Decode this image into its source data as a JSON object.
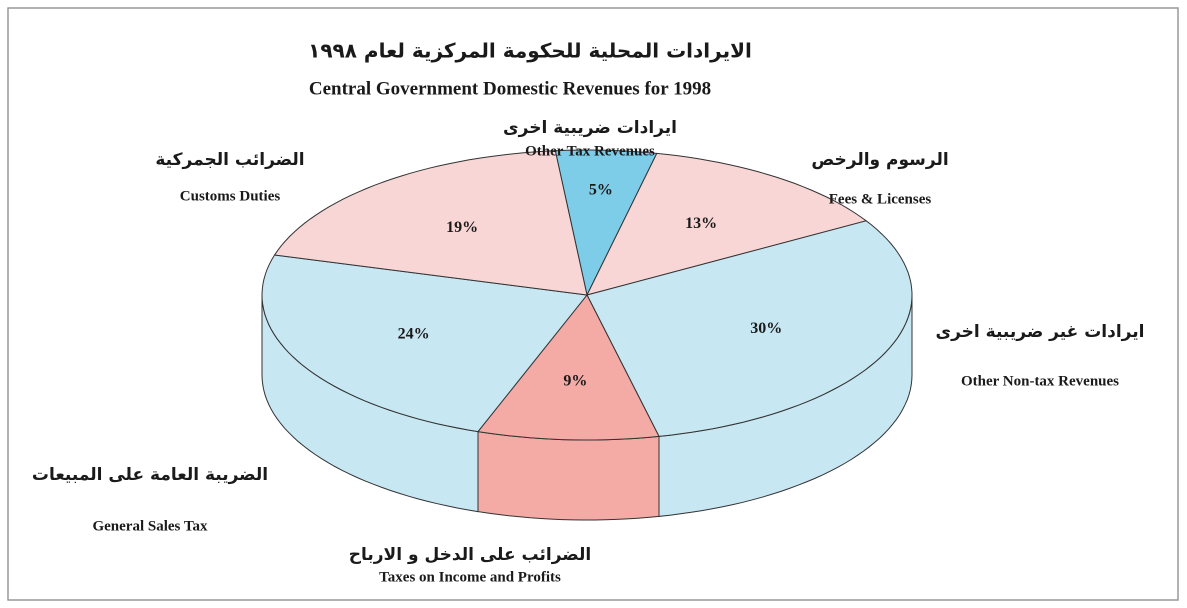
{
  "chart_data": {
    "type": "pie",
    "title": "الايرادات المحلية للحكومة المركزية لعام ١٩٩٨",
    "subtitle": "Central Government Domestic Revenues for 1998",
    "categories": [
      "Other Tax Revenues",
      "Fees & Licenses",
      "Other Non-tax Revenues",
      "Taxes on Income and Profits",
      "General Sales Tax",
      "Customs Duties"
    ],
    "categories_arabic": [
      "ايرادات ضريبية اخرى",
      "الرسوم والرخص",
      "ايرادات غير ضريبية اخرى",
      "الضرائب على الدخل و الارباح",
      "الضريبة العامة على المبيعات",
      "الضرائب الجمركية"
    ],
    "values": [
      5,
      13,
      30,
      9,
      24,
      19
    ],
    "value_labels": [
      "5%",
      "13%",
      "30%",
      "9%",
      "24%",
      "19%"
    ],
    "colors": [
      "#7dcce8",
      "#f8d6d6",
      "#c7e7f3",
      "#f4aaa5",
      "#c7e7f3",
      "#f8d6d6"
    ]
  }
}
